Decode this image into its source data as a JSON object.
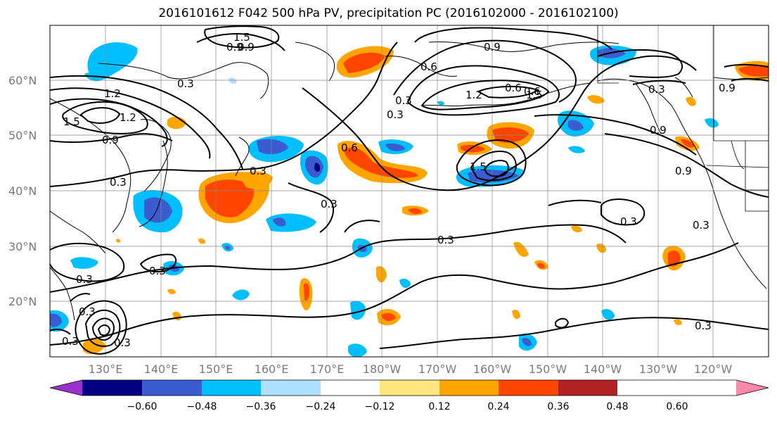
{
  "title": "2016101612 F042 500 hPa PV, precipitation PC (2016102000 - 2016102100)",
  "map": {
    "lat_labels": [
      "60°N",
      "50°N",
      "40°N",
      "30°N",
      "20°N"
    ],
    "lon_labels": [
      "130°E",
      "140°E",
      "150°E",
      "160°E",
      "170°E",
      "180°W",
      "170°W",
      "160°W",
      "150°W",
      "140°W",
      "130°W",
      "120°W"
    ],
    "contour_labels": [
      "1.5",
      "0.9",
      "1.2",
      "1.5",
      "0.9",
      "0.3",
      "0.3",
      "0.3",
      "0.6",
      "0.3",
      "0.6",
      "0.9",
      "1.5",
      "1.2",
      "0.9",
      "0.6",
      "0.3",
      "0.9",
      "0.6",
      "0.9",
      "0.3",
      "0.3",
      "0.3",
      "0.3",
      "0.3",
      "0.3",
      "0.3",
      "0.3",
      "0.3",
      "0.3",
      "1.2",
      "1.5",
      "0.9",
      "0.3"
    ]
  },
  "colorbar": {
    "ticks": [
      "−0.60",
      "−0.48",
      "−0.36",
      "−0.24",
      "−0.12",
      "0.12",
      "0.24",
      "0.36",
      "0.48",
      "0.60"
    ],
    "colors": [
      "#9932cc",
      "#000080",
      "#3b5bd0",
      "#00bfff",
      "#b0e0ff",
      "#ffffff",
      "#ffe680",
      "#ffa500",
      "#ff4500",
      "#b22222",
      "#ff88aa"
    ]
  },
  "colors": {
    "neg_strong": "#3b5bd0",
    "neg_mid": "#00bfff",
    "neg_light": "#b0e0ff",
    "neg_dark": "#000080",
    "pos_light": "#ffe680",
    "pos_mid": "#ffa500",
    "pos_strong": "#ff4500"
  }
}
